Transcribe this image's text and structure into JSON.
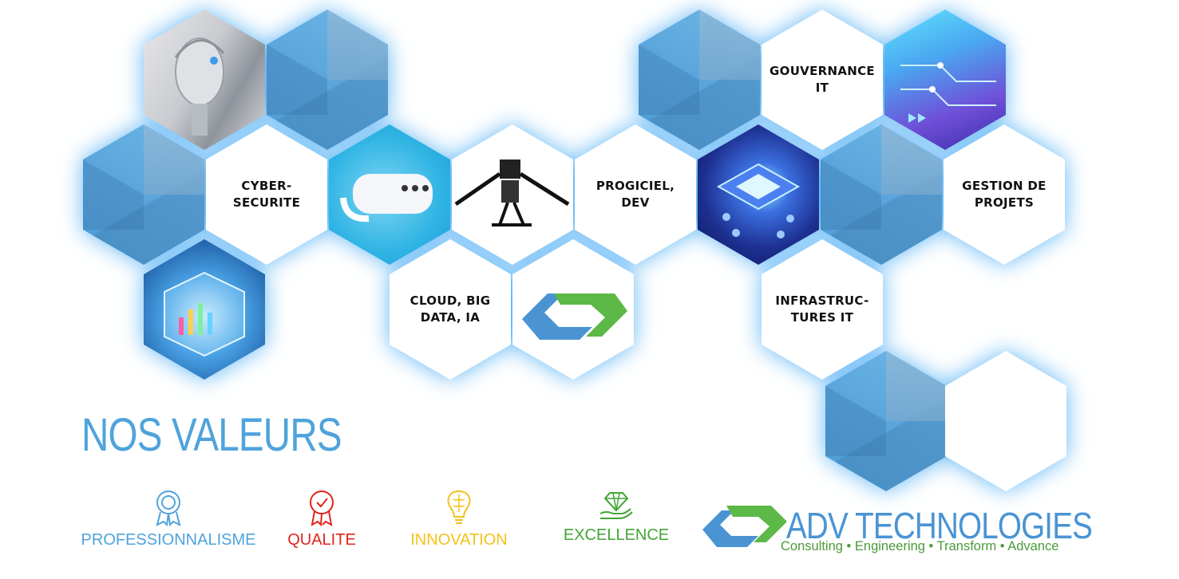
{
  "hexagons": {
    "cyber": "CYBER-\nSECURITE",
    "cloud": "CLOUD, BIG\nDATA, IA",
    "progiciel": "PROGICIEL,\nDEV",
    "gouvernance": "GOUVERNANCE\nIT",
    "infrastructures": "INFRASTRUC-\nTURES  IT",
    "gestion": "GESTION DE\nPROJETS"
  },
  "values_section": {
    "title": "NOS VALEURS",
    "items": [
      {
        "label": "PROFESSIONNALISME",
        "color": "#4fa3dc",
        "icon": "award-badge-icon"
      },
      {
        "label": "QUALITE",
        "color": "#e0241b",
        "icon": "quality-ribbon-icon"
      },
      {
        "label": "INNOVATION",
        "color": "#f3c21a",
        "icon": "lightbulb-brain-icon"
      },
      {
        "label": "EXCELLENCE",
        "color": "#43a435",
        "icon": "diamond-hand-icon"
      }
    ]
  },
  "brand": {
    "name": "ADV TECHNOLOGIES",
    "tagline": "Consulting • Engineering • Transform • Advance",
    "colors": {
      "blue": "#4a94d4",
      "green": "#5cb847"
    }
  }
}
